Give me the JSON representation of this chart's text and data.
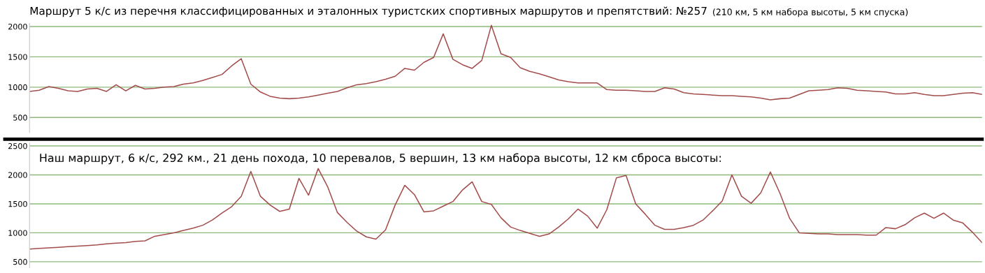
{
  "chart_data": [
    {
      "type": "line",
      "title": "Маршрут 5 к/с из перечня классифицированных и эталонных туристских спортивных маршрутов и препятствий: №257",
      "subtitle": "(210 км, 5 км набора высоты, 5 км спуска)",
      "categories": [
        null,
        null,
        null,
        null,
        null,
        null,
        null,
        null,
        null,
        null,
        null,
        null,
        null,
        null,
        null,
        null,
        null,
        null,
        null,
        null,
        null,
        null,
        null,
        null,
        null,
        null,
        null,
        null,
        null,
        null,
        null,
        null,
        null,
        null,
        null,
        null,
        null,
        null,
        null,
        null,
        null,
        null,
        null,
        null,
        null,
        null,
        null,
        null,
        null,
        null,
        null,
        null,
        null,
        null,
        null,
        null,
        null,
        null,
        null,
        null,
        null,
        null,
        null,
        null,
        null,
        null,
        null,
        null,
        null,
        null,
        null,
        null,
        null,
        null,
        null,
        null,
        null,
        null,
        null,
        null,
        null,
        null,
        null,
        null,
        null,
        null,
        null,
        null,
        null,
        null,
        null,
        null,
        null,
        null,
        null,
        null,
        null,
        null,
        null,
        null
      ],
      "series": [
        {
          "color": "#a24d4b",
          "values": [
            930,
            950,
            1010,
            980,
            940,
            930,
            970,
            980,
            930,
            1040,
            940,
            1030,
            970,
            980,
            1000,
            1010,
            1050,
            1070,
            1110,
            1160,
            1210,
            1350,
            1470,
            1050,
            920,
            850,
            820,
            810,
            820,
            840,
            870,
            900,
            930,
            990,
            1040,
            1060,
            1090,
            1130,
            1180,
            1310,
            1280,
            1410,
            1490,
            1880,
            1460,
            1370,
            1310,
            1440,
            2020,
            1550,
            1490,
            1320,
            1260,
            1220,
            1170,
            1120,
            1090,
            1070,
            1070,
            1070,
            960,
            950,
            950,
            940,
            930,
            930,
            990,
            970,
            910,
            890,
            880,
            870,
            860,
            860,
            850,
            840,
            820,
            790,
            810,
            820,
            880,
            940,
            950,
            960,
            990,
            980,
            950,
            940,
            930,
            920,
            890,
            890,
            910,
            880,
            860,
            860,
            880,
            900,
            910,
            880
          ]
        }
      ],
      "ylim": [
        250,
        2050
      ],
      "yticks": [
        500,
        1000,
        1500,
        2000
      ],
      "grid": "y",
      "tick_labels": "y",
      "legend": false
    },
    {
      "type": "line",
      "title": "Наш маршрут, 6 к/с, 292 км., 21 день похода, 10 перевалов, 5 вершин, 13 км набора высоты, 12 км сброса высоты:",
      "categories": [
        null,
        null,
        null,
        null,
        null,
        null,
        null,
        null,
        null,
        null,
        null,
        null,
        null,
        null,
        null,
        null,
        null,
        null,
        null,
        null,
        null,
        null,
        null,
        null,
        null,
        null,
        null,
        null,
        null,
        null,
        null,
        null,
        null,
        null,
        null,
        null,
        null,
        null,
        null,
        null,
        null,
        null,
        null,
        null,
        null,
        null,
        null,
        null,
        null,
        null,
        null,
        null,
        null,
        null,
        null,
        null,
        null,
        null,
        null,
        null,
        null,
        null,
        null,
        null,
        null,
        null,
        null,
        null,
        null,
        null,
        null,
        null,
        null,
        null,
        null,
        null,
        null,
        null,
        null,
        null,
        null,
        null,
        null,
        null,
        null,
        null,
        null,
        null,
        null,
        null,
        null,
        null,
        null,
        null,
        null,
        null,
        null,
        null,
        null,
        null
      ],
      "series": [
        {
          "color": "#a24d4b",
          "values": [
            720,
            730,
            740,
            750,
            760,
            770,
            780,
            790,
            810,
            820,
            830,
            850,
            860,
            940,
            970,
            1000,
            1040,
            1080,
            1130,
            1220,
            1340,
            1450,
            1630,
            2060,
            1630,
            1480,
            1370,
            1410,
            1940,
            1650,
            2110,
            1790,
            1350,
            1180,
            1030,
            930,
            890,
            1050,
            1480,
            1820,
            1660,
            1360,
            1380,
            1460,
            1540,
            1740,
            1880,
            1540,
            1490,
            1260,
            1100,
            1040,
            990,
            940,
            980,
            1100,
            1240,
            1410,
            1290,
            1080,
            1400,
            1950,
            1990,
            1500,
            1320,
            1130,
            1060,
            1060,
            1090,
            1130,
            1220,
            1380,
            1550,
            2000,
            1630,
            1510,
            1690,
            2050,
            1680,
            1250,
            1000,
            990,
            980,
            980,
            970,
            970,
            970,
            960,
            960,
            1090,
            1070,
            1140,
            1260,
            1340,
            1250,
            1340,
            1220,
            1170,
            1010,
            830
          ]
        }
      ],
      "ylim": [
        400,
        2550
      ],
      "yticks": [
        500,
        1000,
        1500,
        2000,
        2500
      ],
      "grid": "y",
      "tick_labels": "y",
      "legend": false
    }
  ]
}
